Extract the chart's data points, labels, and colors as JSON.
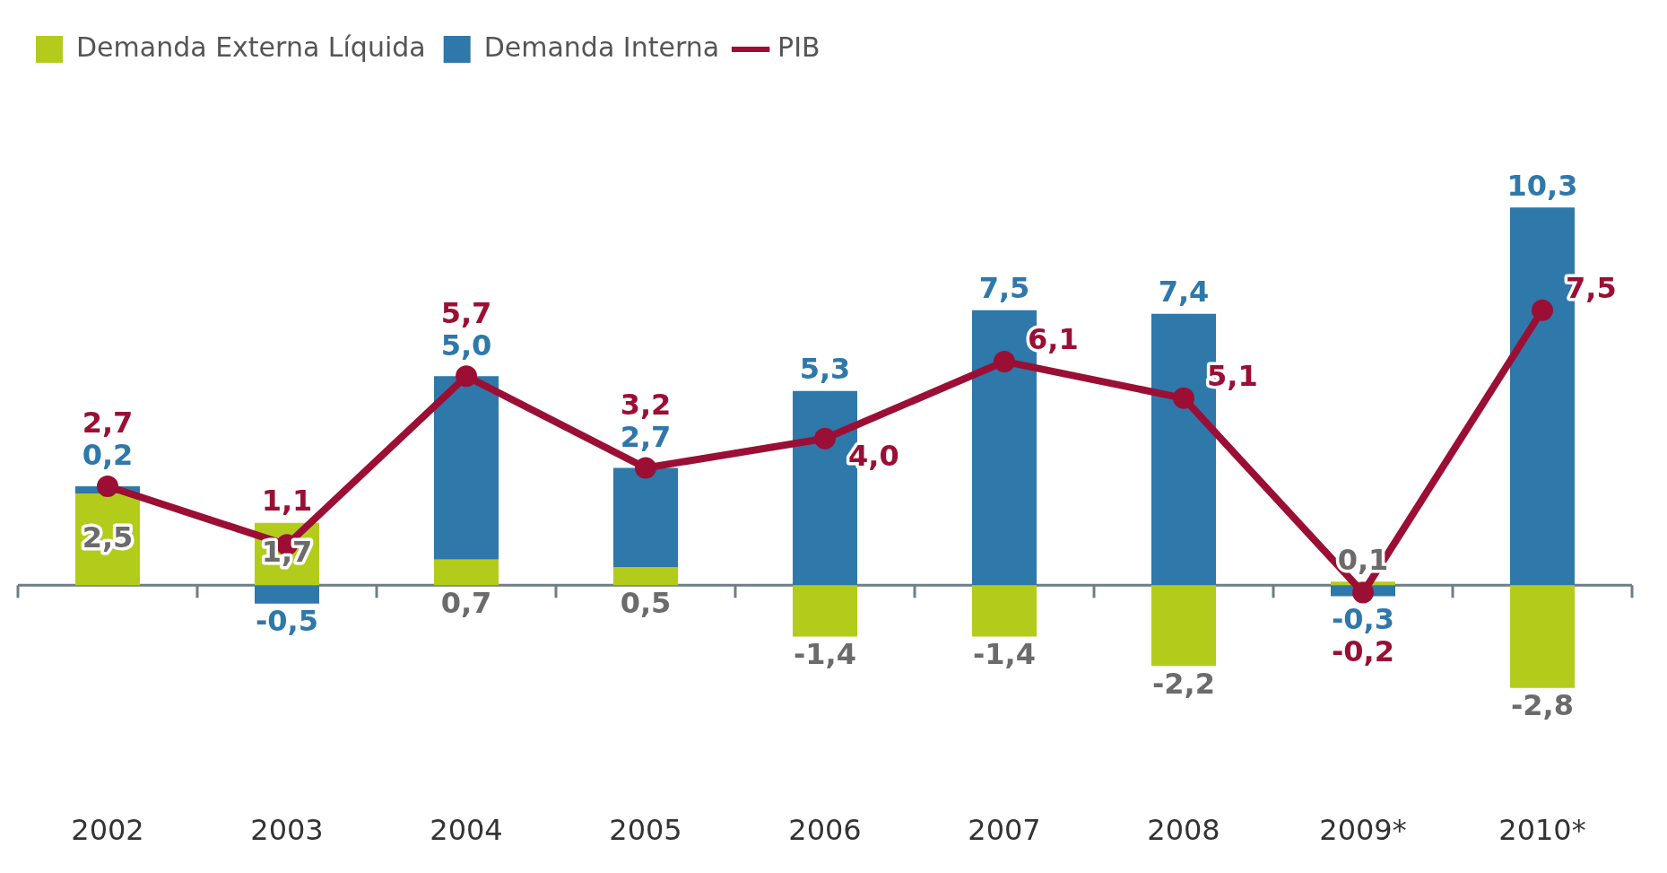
{
  "chart_data": {
    "type": "bar",
    "stacked": true,
    "legend": "top left",
    "marker": "circle",
    "categories": [
      "2002",
      "2003",
      "2004",
      "2005",
      "2006",
      "2007",
      "2008",
      "2009*",
      "2010*"
    ],
    "series": [
      {
        "name": "Demanda Externa Líquida",
        "color": "#b3cc1c",
        "values": [
          2.5,
          1.7,
          0.7,
          0.5,
          -1.4,
          -1.4,
          -2.2,
          0.1,
          -2.8
        ],
        "value_labels": [
          "2,5",
          "1,7",
          "0,7",
          "0,5",
          "-1,4",
          "-1,4",
          "-2,2",
          "0,1",
          "-2,8"
        ]
      },
      {
        "name": "Demanda Interna",
        "color": "#2f78aa",
        "values": [
          0.2,
          -0.5,
          5.0,
          2.7,
          5.3,
          7.5,
          7.4,
          -0.3,
          10.3
        ],
        "value_labels": [
          "0,2",
          "-0,5",
          "5,0",
          "2,7",
          "5,3",
          "7,5",
          "7,4",
          "-0,3",
          "10,3"
        ]
      },
      {
        "name": "PIB",
        "type": "line",
        "color": "#9b0f35",
        "values": [
          2.7,
          1.1,
          5.7,
          3.2,
          4.0,
          6.1,
          5.1,
          -0.2,
          7.5
        ],
        "value_labels": [
          "2,7",
          "1,1",
          "5,7",
          "3,2",
          "4,0",
          "6,1",
          "5,1",
          "-0,2",
          "7,5"
        ]
      }
    ]
  }
}
